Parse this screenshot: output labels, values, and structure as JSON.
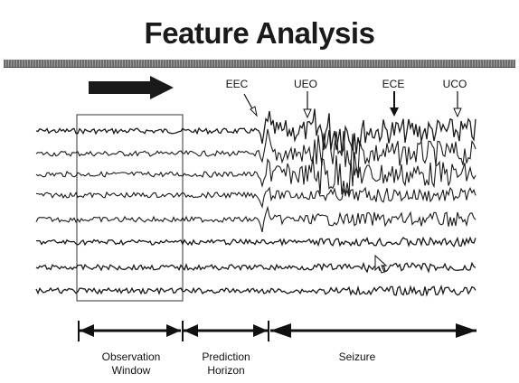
{
  "title": "Feature Analysis",
  "markers": [
    {
      "label": "EEC"
    },
    {
      "label": "UEO"
    },
    {
      "label": "ECE"
    },
    {
      "label": "UCO"
    }
  ],
  "sections": {
    "observation": "Observation\nWindow",
    "prediction": "Prediction\nHorizon",
    "seizure": "Seizure"
  },
  "channel_count": 8,
  "colors": {
    "trace": "#1a1a1a",
    "title_bar": "#7a7a7a",
    "background": "#ffffff"
  },
  "icons": [
    "direction-arrow-icon",
    "mouse-cursor-icon"
  ]
}
